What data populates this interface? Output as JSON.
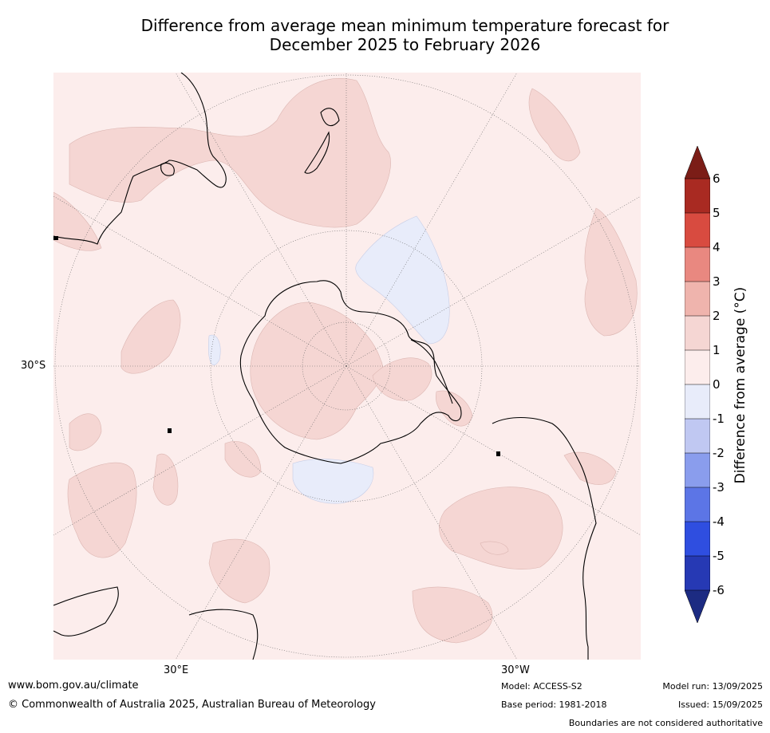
{
  "title_line1": "Difference from average mean minimum temperature forecast for",
  "title_line2": "December 2025 to February 2026",
  "map": {
    "projection": "south-polar-stereographic",
    "labels": {
      "lat_30s": "30°S",
      "lon_30e": "30°E",
      "lon_30w": "30°W"
    },
    "colors": {
      "background": "#fcedec",
      "warm_anomaly_0_1": "#fcedec",
      "warm_anomaly_1_2": "#f5d6d3",
      "cool_anomaly_minus1_0": "#e8ecfa",
      "coastline": "#000000",
      "border": "#888888",
      "graticule": "#666666"
    }
  },
  "colorbar": {
    "label": "Difference from average (°C)",
    "ticks": [
      "6",
      "5",
      "4",
      "3",
      "2",
      "1",
      "0",
      "-1",
      "-2",
      "-3",
      "-4",
      "-5",
      "-6"
    ],
    "colors": {
      "above_6": "#7b1d17",
      "5_to_6": "#a92a22",
      "4_to_5": "#d84b40",
      "3_to_4": "#e98880",
      "2_to_3": "#efb4ad",
      "1_to_2": "#f5d6d3",
      "0_to_1": "#fcedec",
      "minus1_to_0": "#e8ecfa",
      "minus2_to_minus1": "#c0c8f2",
      "minus3_to_minus2": "#8a9ded",
      "minus4_to_minus3": "#5c75e6",
      "minus5_to_minus4": "#2f4ee0",
      "minus6_to_minus5": "#2639b4",
      "below_minus6": "#1c2b82"
    }
  },
  "footer": {
    "website": "www.bom.gov.au/climate",
    "copyright": "© Commonwealth of Australia 2025, Australian Bureau of Meteorology",
    "model": "Model: ACCESS-S2",
    "base_period": "Base period: 1981-2018",
    "model_run": "Model run: 13/09/2025",
    "issued": "Issued: 15/09/2025",
    "disclaimer": "Boundaries are not considered authoritative"
  }
}
